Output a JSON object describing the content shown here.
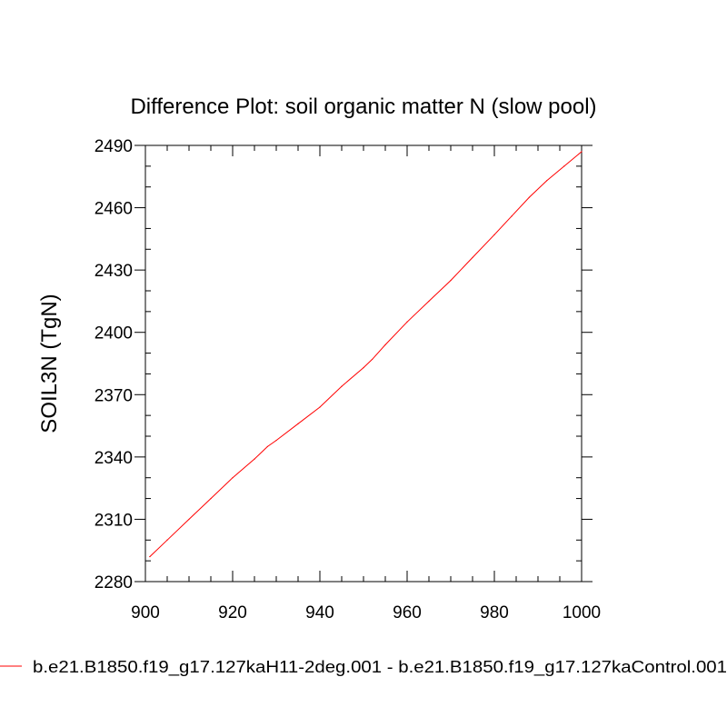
{
  "chart_data": {
    "type": "line",
    "title": "Difference Plot: soil organic matter N (slow pool)",
    "xlabel": "",
    "ylabel": "SOIL3N  (TgN)",
    "xlim": [
      900,
      1000
    ],
    "ylim": [
      2280,
      2490
    ],
    "x_ticks": [
      900,
      920,
      940,
      960,
      980,
      1000
    ],
    "y_ticks": [
      2280,
      2310,
      2340,
      2370,
      2400,
      2430,
      2460,
      2490
    ],
    "grid": false,
    "legend_position": "bottom-left",
    "series": [
      {
        "name": "b.e21.B1850.f19_g17.127kaH11-2deg.001 - b.e21.B1850.f19_g17.127kaControl.001",
        "color": "#ff0000",
        "x": [
          901,
          905,
          910,
          915,
          920,
          925,
          928,
          930,
          935,
          940,
          945,
          950,
          952,
          955,
          960,
          965,
          970,
          975,
          980,
          984,
          988,
          992,
          996,
          1000
        ],
        "y": [
          2292,
          2300,
          2310,
          2320,
          2330,
          2339,
          2345,
          2348,
          2356,
          2364,
          2374,
          2383,
          2387,
          2394,
          2405,
          2415,
          2425,
          2436,
          2447,
          2456,
          2465,
          2473,
          2480,
          2487
        ]
      }
    ]
  }
}
